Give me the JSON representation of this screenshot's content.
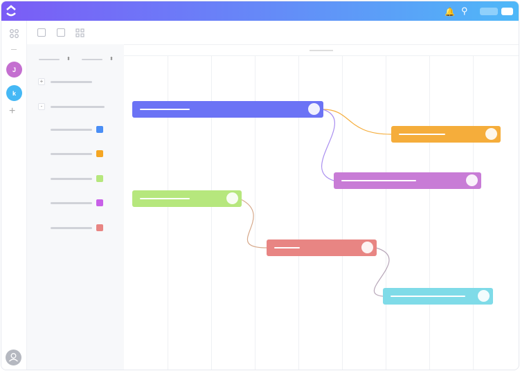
{
  "rail": {
    "avatars": [
      {
        "initial": "J",
        "color": "#c46fd0"
      },
      {
        "initial": "k",
        "color": "#45b8f5"
      }
    ]
  },
  "icons": {
    "logo": "clickup-logo",
    "notifications": "bell-icon",
    "search": "search-icon"
  },
  "theme": {
    "header_gradient": [
      "#7b5cf6",
      "#4fb8f8"
    ]
  },
  "sidebar": {
    "item_colors": [
      "#4a8ef5",
      "#f5a623",
      "#b6e77d",
      "#c860e8",
      "#e88583"
    ]
  },
  "gantt": {
    "bar_colors": [
      "#6b73f5",
      "#f5ad3b",
      "#c87cd6",
      "#b6e77d",
      "#e88583",
      "#7fdbe8"
    ]
  }
}
